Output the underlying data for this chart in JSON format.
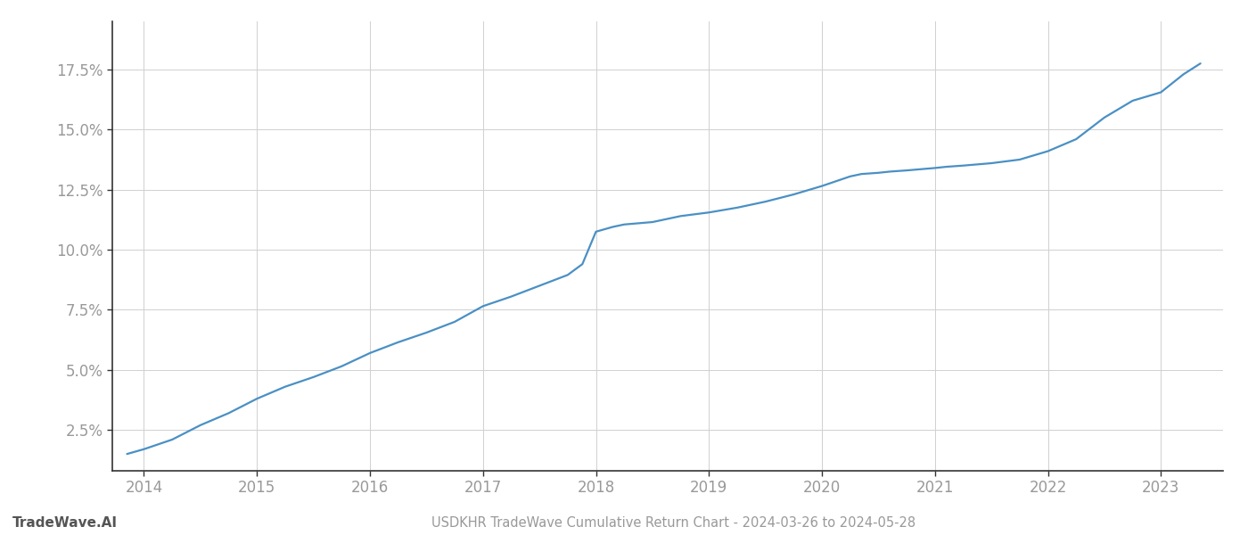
{
  "title": "USDKHR TradeWave Cumulative Return Chart - 2024-03-26 to 2024-05-28",
  "watermark": "TradeWave.AI",
  "line_color": "#4a90c4",
  "background_color": "#ffffff",
  "grid_color": "#d0d0d0",
  "x_years": [
    2014,
    2015,
    2016,
    2017,
    2018,
    2019,
    2020,
    2021,
    2022,
    2023
  ],
  "x_data": [
    2013.85,
    2014.0,
    2014.25,
    2014.5,
    2014.75,
    2015.0,
    2015.25,
    2015.5,
    2015.75,
    2016.0,
    2016.25,
    2016.5,
    2016.75,
    2017.0,
    2017.25,
    2017.5,
    2017.75,
    2017.88,
    2018.0,
    2018.15,
    2018.25,
    2018.5,
    2018.75,
    2019.0,
    2019.25,
    2019.5,
    2019.75,
    2020.0,
    2020.25,
    2020.35,
    2020.5,
    2020.6,
    2020.75,
    2021.0,
    2021.1,
    2021.25,
    2021.5,
    2021.75,
    2022.0,
    2022.25,
    2022.5,
    2022.75,
    2023.0,
    2023.2,
    2023.35
  ],
  "y_data": [
    1.5,
    1.7,
    2.1,
    2.7,
    3.2,
    3.8,
    4.3,
    4.7,
    5.15,
    5.7,
    6.15,
    6.55,
    7.0,
    7.65,
    8.05,
    8.5,
    8.95,
    9.4,
    10.75,
    10.95,
    11.05,
    11.15,
    11.4,
    11.55,
    11.75,
    12.0,
    12.3,
    12.65,
    13.05,
    13.15,
    13.2,
    13.25,
    13.3,
    13.4,
    13.45,
    13.5,
    13.6,
    13.75,
    14.1,
    14.6,
    15.5,
    16.2,
    16.55,
    17.3,
    17.75
  ],
  "yticks": [
    2.5,
    5.0,
    7.5,
    10.0,
    12.5,
    15.0,
    17.5
  ],
  "ylim": [
    0.8,
    19.5
  ],
  "xlim": [
    2013.72,
    2023.55
  ],
  "tick_label_color": "#999999",
  "left_spine_color": "#333333",
  "bottom_spine_color": "#333333",
  "title_color": "#999999",
  "watermark_color": "#555555",
  "title_fontsize": 10.5,
  "watermark_fontsize": 11,
  "tick_fontsize": 12,
  "line_width": 1.6
}
